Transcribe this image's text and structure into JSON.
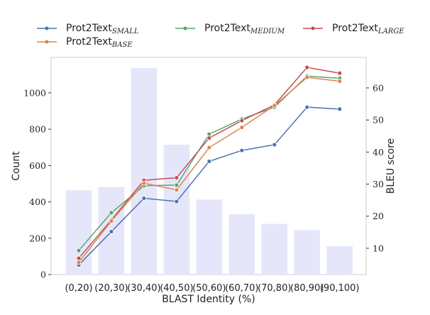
{
  "chart_data": {
    "type": "bar+line",
    "xlabel": "BLAST Identity (%)",
    "ylabel_left": "Count",
    "ylabel_right": "BLEU score",
    "categories": [
      "(0,20)",
      "(20,30)",
      "(30,40)",
      "(40,50)",
      "(50,60)",
      "(60,70)",
      "(70,80)",
      "(80,90)",
      "(90,100)"
    ],
    "bars": {
      "values": [
        464,
        482,
        1137,
        715,
        413,
        333,
        279,
        245,
        157
      ],
      "color": "#e6e6fa"
    },
    "ylim_left": [
      0,
      1195
    ],
    "ylim_right": [
      1.8,
      69.5
    ],
    "yticks_left": [
      0,
      200,
      400,
      600,
      800,
      1000
    ],
    "yticks_right": [
      10,
      20,
      30,
      40,
      50,
      60
    ],
    "grid": false,
    "legend_position": "top",
    "series": [
      {
        "name": "Prot2Text",
        "subscript": "SMALL",
        "color": "#4c72b0",
        "values": [
          4.8,
          15.2,
          25.6,
          24.6,
          37.1,
          40.5,
          42.3,
          54.0,
          53.4
        ]
      },
      {
        "name": "Prot2Text",
        "subscript": "MEDIUM",
        "color": "#55a868",
        "values": [
          9.3,
          21.1,
          29.5,
          29.7,
          45.6,
          50.3,
          54.0,
          63.7,
          63.0
        ]
      },
      {
        "name": "Prot2Text",
        "subscript": "LARGE",
        "color": "#c44e52",
        "values": [
          6.9,
          18.8,
          31.2,
          32.0,
          44.4,
          49.8,
          54.7,
          66.4,
          64.6
        ]
      },
      {
        "name": "Prot2Text",
        "subscript": "BASE",
        "color": "#dd8452",
        "values": [
          5.6,
          18.5,
          30.3,
          28.2,
          41.4,
          47.7,
          54.5,
          63.3,
          62.1
        ]
      }
    ]
  }
}
